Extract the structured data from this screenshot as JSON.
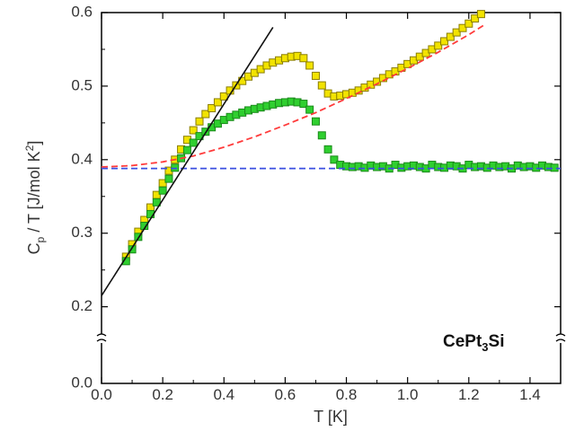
{
  "chart_data": {
    "type": "scatter",
    "title": "",
    "xlabel": "T [K]",
    "ylabel": "C_p / T [J/mol K^2]",
    "ylabel_parts": {
      "base": "C",
      "sub": "p",
      "mid": " / T [J/mol K",
      "sup": "2",
      "end": "]"
    },
    "annotation": {
      "base": "CePt",
      "sub": "3",
      "end": "Si"
    },
    "xlim": [
      0,
      1.5
    ],
    "ylim": [
      0.18,
      0.6
    ],
    "ybreak": {
      "below": 0.18,
      "zero_label": "0.0"
    },
    "x_ticks": [
      "0.0",
      "0.2",
      "0.4",
      "0.6",
      "0.8",
      "1.0",
      "1.2",
      "1.4"
    ],
    "x_tick_values": [
      0,
      0.2,
      0.4,
      0.6,
      0.8,
      1.0,
      1.2,
      1.4
    ],
    "y_ticks": [
      "0.2",
      "0.3",
      "0.4",
      "0.5",
      "0.6"
    ],
    "y_tick_values": [
      0.2,
      0.3,
      0.4,
      0.5,
      0.6
    ],
    "grid": false,
    "colors": {
      "yellow_fill": "#f2e300",
      "yellow_edge": "#8a7d00",
      "green_fill": "#2fcf2f",
      "green_edge": "#1a8a1a",
      "fit_red": "#ff3b3b",
      "fit_blue": "#3a4fe0",
      "fit_black": "#111111"
    },
    "series": [
      {
        "marker": "square",
        "color": "#f2e300",
        "x": [
          0.08,
          0.1,
          0.12,
          0.14,
          0.16,
          0.18,
          0.2,
          0.22,
          0.24,
          0.26,
          0.28,
          0.3,
          0.32,
          0.34,
          0.36,
          0.38,
          0.4,
          0.42,
          0.44,
          0.46,
          0.48,
          0.5,
          0.52,
          0.54,
          0.56,
          0.58,
          0.6,
          0.62,
          0.64,
          0.66,
          0.68,
          0.7,
          0.72,
          0.74,
          0.76,
          0.78,
          0.8,
          0.82,
          0.84,
          0.86,
          0.88,
          0.9,
          0.92,
          0.94,
          0.96,
          0.98,
          1.0,
          1.02,
          1.04,
          1.06,
          1.08,
          1.1,
          1.12,
          1.14,
          1.16,
          1.18,
          1.2,
          1.22,
          1.24
        ],
        "y": [
          0.268,
          0.285,
          0.302,
          0.318,
          0.335,
          0.352,
          0.368,
          0.385,
          0.4,
          0.414,
          0.427,
          0.44,
          0.452,
          0.462,
          0.47,
          0.478,
          0.486,
          0.494,
          0.501,
          0.507,
          0.513,
          0.518,
          0.523,
          0.528,
          0.532,
          0.535,
          0.538,
          0.54,
          0.541,
          0.538,
          0.528,
          0.514,
          0.501,
          0.49,
          0.486,
          0.487,
          0.489,
          0.491,
          0.494,
          0.498,
          0.502,
          0.506,
          0.511,
          0.516,
          0.52,
          0.525,
          0.53,
          0.535,
          0.54,
          0.545,
          0.55,
          0.555,
          0.561,
          0.567,
          0.573,
          0.579,
          0.585,
          0.592,
          0.598
        ]
      },
      {
        "marker": "square",
        "color": "#2fcf2f",
        "x": [
          0.08,
          0.1,
          0.12,
          0.14,
          0.16,
          0.18,
          0.2,
          0.22,
          0.24,
          0.26,
          0.28,
          0.3,
          0.32,
          0.34,
          0.36,
          0.38,
          0.4,
          0.42,
          0.44,
          0.46,
          0.48,
          0.5,
          0.52,
          0.54,
          0.56,
          0.58,
          0.6,
          0.62,
          0.64,
          0.66,
          0.68,
          0.7,
          0.72,
          0.74,
          0.76,
          0.78,
          0.8,
          0.82,
          0.84,
          0.86,
          0.88,
          0.9,
          0.92,
          0.94,
          0.96,
          0.98,
          1.0,
          1.02,
          1.04,
          1.06,
          1.08,
          1.1,
          1.12,
          1.14,
          1.16,
          1.18,
          1.2,
          1.22,
          1.24,
          1.26,
          1.28,
          1.3,
          1.32,
          1.34,
          1.36,
          1.38,
          1.4,
          1.42,
          1.44,
          1.46,
          1.48
        ],
        "y": [
          0.262,
          0.278,
          0.295,
          0.31,
          0.326,
          0.342,
          0.358,
          0.374,
          0.389,
          0.402,
          0.413,
          0.423,
          0.432,
          0.438,
          0.444,
          0.449,
          0.454,
          0.458,
          0.461,
          0.464,
          0.467,
          0.469,
          0.471,
          0.473,
          0.475,
          0.477,
          0.478,
          0.479,
          0.478,
          0.476,
          0.468,
          0.452,
          0.433,
          0.414,
          0.4,
          0.393,
          0.391,
          0.39,
          0.391,
          0.389,
          0.392,
          0.39,
          0.391,
          0.388,
          0.393,
          0.389,
          0.391,
          0.392,
          0.39,
          0.388,
          0.393,
          0.39,
          0.389,
          0.392,
          0.391,
          0.388,
          0.393,
          0.39,
          0.391,
          0.389,
          0.392,
          0.39,
          0.391,
          0.388,
          0.392,
          0.39,
          0.391,
          0.389,
          0.392,
          0.39,
          0.389
        ]
      },
      {
        "marker": "dashed-line",
        "color": "#ff3b3b",
        "x": [
          0.0,
          0.1,
          0.2,
          0.3,
          0.4,
          0.5,
          0.6,
          0.7,
          0.8,
          0.9,
          1.0,
          1.1,
          1.2,
          1.25
        ],
        "y": [
          0.39,
          0.392,
          0.397,
          0.405,
          0.417,
          0.431,
          0.447,
          0.464,
          0.483,
          0.503,
          0.524,
          0.546,
          0.57,
          0.583
        ]
      },
      {
        "marker": "dashed-line",
        "color": "#3a4fe0",
        "x": [
          0.0,
          1.5
        ],
        "y": [
          0.388,
          0.388
        ]
      },
      {
        "marker": "solid-line",
        "color": "#111111",
        "x": [
          0.0,
          0.56
        ],
        "y": [
          0.215,
          0.58
        ]
      }
    ]
  }
}
